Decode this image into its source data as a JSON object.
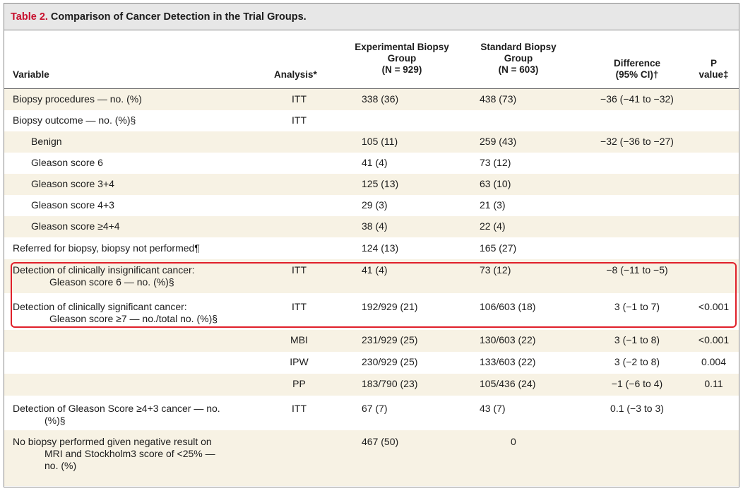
{
  "title": {
    "number": "Table 2.",
    "text": "Comparison of Cancer Detection in the Trial Groups."
  },
  "headers": {
    "variable": "Variable",
    "analysis": "Analysis*",
    "experimental": [
      "Experimental Biopsy",
      "Group",
      "(N = 929)"
    ],
    "standard": [
      "Standard Biopsy",
      "Group",
      "(N = 603)"
    ],
    "difference": [
      "Difference",
      "(95% CI)†"
    ],
    "pvalue": [
      "P",
      "value‡"
    ]
  },
  "rows": [
    {
      "variable": "Biopsy procedures — no. (%)",
      "analysis": "ITT",
      "experimental": "338 (36)",
      "standard": "438 (73)",
      "difference": "−36 (−41 to −32)",
      "pvalue": ""
    },
    {
      "variable": "Biopsy outcome — no. (%)§",
      "analysis": "ITT",
      "experimental": "",
      "standard": "",
      "difference": "",
      "pvalue": ""
    },
    {
      "variable": "Benign",
      "analysis": "",
      "experimental": "105 (11)",
      "standard": "259 (43)",
      "difference": "−32 (−36 to −27)",
      "pvalue": ""
    },
    {
      "variable": "Gleason score 6",
      "analysis": "",
      "experimental": "41 (4)",
      "standard": "73 (12)",
      "difference": "",
      "pvalue": ""
    },
    {
      "variable": "Gleason score 3+4",
      "analysis": "",
      "experimental": "125 (13)",
      "standard": "63 (10)",
      "difference": "",
      "pvalue": ""
    },
    {
      "variable": "Gleason score 4+3",
      "analysis": "",
      "experimental": "29 (3)",
      "standard": "21 (3)",
      "difference": "",
      "pvalue": ""
    },
    {
      "variable": "Gleason score ≥4+4",
      "analysis": "",
      "experimental": "38 (4)",
      "standard": "22 (4)",
      "difference": "",
      "pvalue": ""
    },
    {
      "variable": "Referred for biopsy, biopsy not performed¶",
      "analysis": "",
      "experimental": "124 (13)",
      "standard": "165 (27)",
      "difference": "",
      "pvalue": ""
    },
    {
      "variable_line1": "Detection of clinically insignificant cancer:",
      "variable_line2": "Gleason score 6 — no. (%)§",
      "analysis": "ITT",
      "experimental": "41 (4)",
      "standard": "73 (12)",
      "difference": "−8 (−11 to −5)",
      "pvalue": ""
    },
    {
      "variable_line1": "Detection of clinically significant cancer:",
      "variable_line2": "Gleason score ≥7 — no./total no. (%)§",
      "analysis": "ITT",
      "experimental": "192/929 (21)",
      "standard": "106/603 (18)",
      "difference": "3 (−1 to 7)",
      "pvalue": "<0.001"
    },
    {
      "variable": "",
      "analysis": "MBI",
      "experimental": "231/929 (25)",
      "standard": "130/603 (22)",
      "difference": "3 (−1 to 8)",
      "pvalue": "<0.001"
    },
    {
      "variable": "",
      "analysis": "IPW",
      "experimental": "230/929 (25)",
      "standard": "133/603 (22)",
      "difference": "3 (−2 to 8)",
      "pvalue": "0.004"
    },
    {
      "variable": "",
      "analysis": "PP",
      "experimental": "183/790 (23)",
      "standard": "105/436 (24)",
      "difference": "−1 (−6 to 4)",
      "pvalue": "0.11"
    },
    {
      "variable_line1": "Detection of Gleason Score ≥4+3 cancer — no.",
      "variable_line2": "(%)§",
      "analysis": "ITT",
      "experimental": "67 (7)",
      "standard": "43 (7)",
      "difference": "0.1 (−3 to 3)",
      "pvalue": ""
    },
    {
      "variable_line1": "No biopsy performed given negative result on",
      "variable_line2": "MRI and Stockholm3 score of <25% —",
      "variable_line3": "no. (%)",
      "analysis": "",
      "experimental": "467 (50)",
      "standard": "0",
      "difference": "",
      "pvalue": ""
    }
  ],
  "colors": {
    "title_number": "#c8102e",
    "title_bar_bg": "#e7e7e7",
    "row_shade": "#f7f2e4",
    "highlight_border": "#e0202a"
  }
}
